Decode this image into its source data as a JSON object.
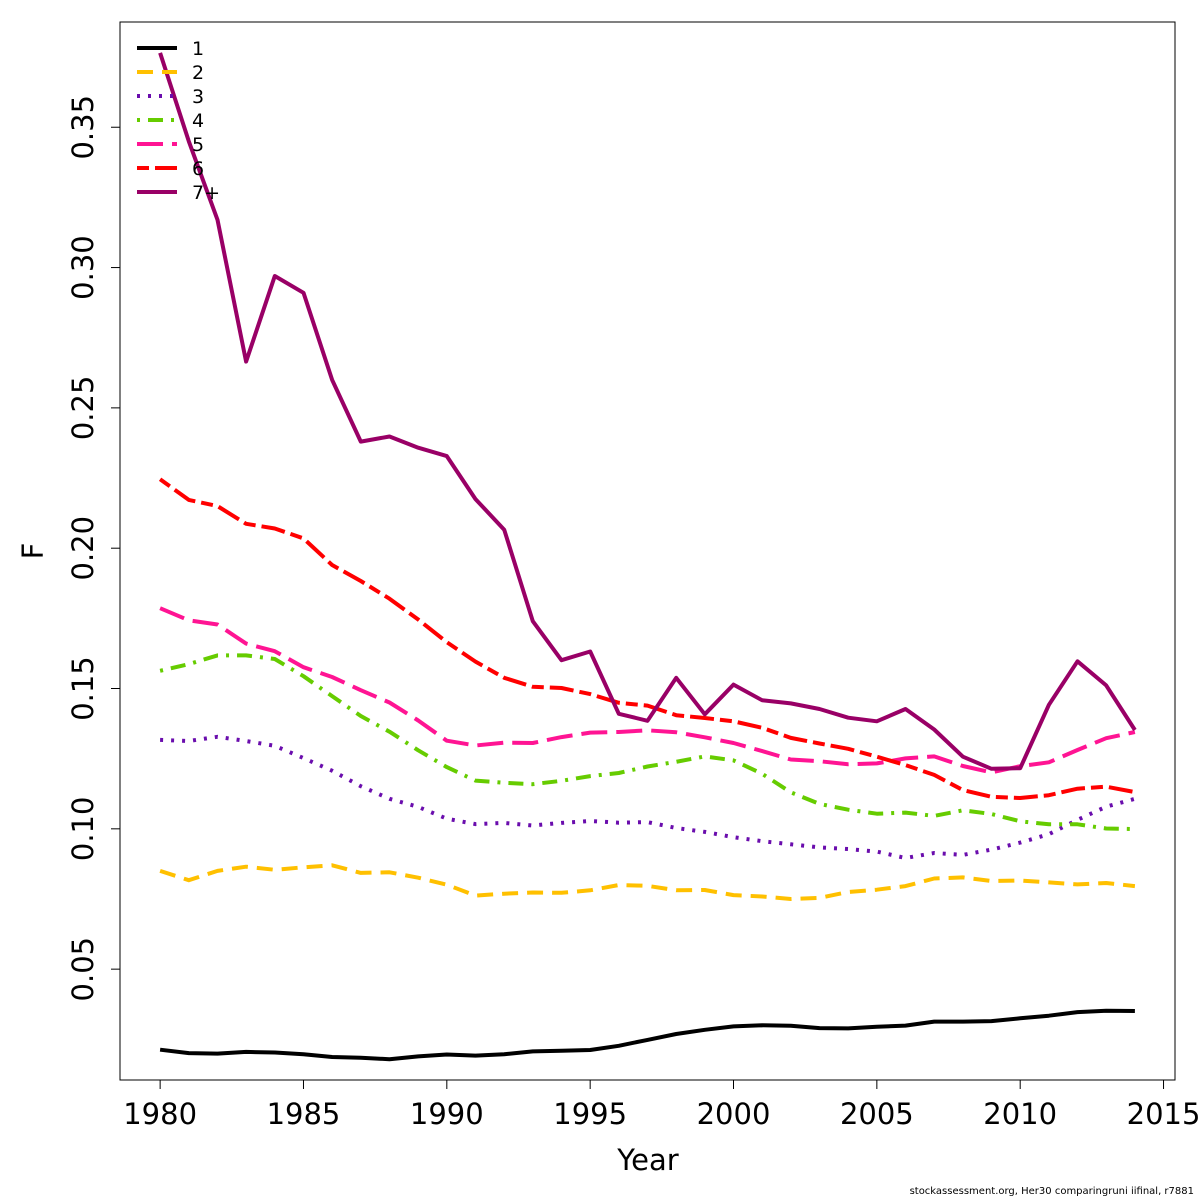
{
  "chart_data": {
    "type": "line",
    "title": "",
    "xlabel": "Year",
    "ylabel": "F",
    "xlim": [
      1978.6,
      2015.4
    ],
    "ylim": [
      0.0105,
      0.3875
    ],
    "xticks": [
      1980,
      1985,
      1990,
      1995,
      2000,
      2005,
      2010,
      2015
    ],
    "yticks": [
      0.05,
      0.1,
      0.15,
      0.2,
      0.25,
      0.3,
      0.35
    ],
    "ytick_labels": [
      "0.05",
      "0.10",
      "0.15",
      "0.20",
      "0.25",
      "0.30",
      "0.35"
    ],
    "legend_position": "top-left",
    "grid": false,
    "x": [
      1980,
      1981,
      1982,
      1983,
      1984,
      1985,
      1986,
      1987,
      1988,
      1989,
      1990,
      1991,
      1992,
      1993,
      1994,
      1995,
      1996,
      1997,
      1998,
      1999,
      2000,
      2001,
      2002,
      2003,
      2004,
      2005,
      2006,
      2007,
      2008,
      2009,
      2010,
      2011,
      2012,
      2013,
      2014
    ],
    "series": [
      {
        "name": "1",
        "color": "#000000",
        "dash": "solid",
        "values": [
          0.0213,
          0.0201,
          0.0199,
          0.0205,
          0.0203,
          0.0197,
          0.0187,
          0.0184,
          0.0179,
          0.0189,
          0.0196,
          0.0192,
          0.0197,
          0.0207,
          0.0209,
          0.0212,
          0.0227,
          0.0248,
          0.0269,
          0.0284,
          0.0296,
          0.03,
          0.0298,
          0.029,
          0.0289,
          0.0295,
          0.0299,
          0.0313,
          0.0313,
          0.0315,
          0.0325,
          0.0334,
          0.0347,
          0.0352,
          0.0351
        ]
      },
      {
        "name": "2",
        "color": "#FFC000",
        "dash": "dash",
        "values": [
          0.085,
          0.0817,
          0.085,
          0.0865,
          0.0854,
          0.0863,
          0.087,
          0.0843,
          0.0845,
          0.0826,
          0.0801,
          0.0762,
          0.0769,
          0.0773,
          0.0772,
          0.0781,
          0.08,
          0.0797,
          0.0781,
          0.0782,
          0.0764,
          0.0759,
          0.075,
          0.0754,
          0.0775,
          0.0783,
          0.0796,
          0.0823,
          0.0827,
          0.0814,
          0.0816,
          0.0809,
          0.0802,
          0.0807,
          0.0796
        ]
      },
      {
        "name": "3",
        "color": "#6A0DAD",
        "dash": "dot",
        "values": [
          0.1317,
          0.1313,
          0.1328,
          0.1313,
          0.1296,
          0.1252,
          0.1207,
          0.1152,
          0.1107,
          0.1078,
          0.1036,
          0.1017,
          0.1021,
          0.1012,
          0.1021,
          0.1028,
          0.1022,
          0.1024,
          0.1003,
          0.0989,
          0.097,
          0.0956,
          0.0945,
          0.0934,
          0.0928,
          0.0919,
          0.0896,
          0.0914,
          0.0907,
          0.0926,
          0.0951,
          0.0981,
          0.1032,
          0.1079,
          0.1107
        ]
      },
      {
        "name": "4",
        "color": "#66CC00",
        "dash": "dashdot",
        "values": [
          0.1563,
          0.1587,
          0.1618,
          0.1618,
          0.1605,
          0.1544,
          0.1473,
          0.1402,
          0.1346,
          0.128,
          0.122,
          0.1172,
          0.1164,
          0.1159,
          0.1171,
          0.1188,
          0.1199,
          0.1222,
          0.1239,
          0.1258,
          0.1244,
          0.1196,
          0.113,
          0.1089,
          0.1068,
          0.1054,
          0.1058,
          0.1046,
          0.1066,
          0.1053,
          0.1027,
          0.1016,
          0.1016,
          0.1001,
          0.0999
        ]
      },
      {
        "name": "5",
        "color": "#FF1493",
        "dash": "longdash",
        "values": [
          0.1786,
          0.1743,
          0.1728,
          0.166,
          0.1633,
          0.1576,
          0.1541,
          0.1494,
          0.145,
          0.1386,
          0.1314,
          0.1297,
          0.1307,
          0.1306,
          0.1327,
          0.1343,
          0.1345,
          0.1351,
          0.1344,
          0.1326,
          0.1306,
          0.1277,
          0.1247,
          0.1241,
          0.123,
          0.1233,
          0.1251,
          0.1258,
          0.1224,
          0.1201,
          0.1223,
          0.1237,
          0.1281,
          0.1323,
          0.1345
        ]
      },
      {
        "name": "6",
        "color": "#FF0000",
        "dash": "twodash",
        "values": [
          0.2246,
          0.2172,
          0.215,
          0.2087,
          0.207,
          0.2035,
          0.194,
          0.1883,
          0.182,
          0.1746,
          0.1665,
          0.1596,
          0.1538,
          0.1506,
          0.1502,
          0.148,
          0.1449,
          0.1439,
          0.1405,
          0.1395,
          0.1383,
          0.136,
          0.1324,
          0.1304,
          0.1285,
          0.1257,
          0.1227,
          0.1192,
          0.1138,
          0.1114,
          0.111,
          0.112,
          0.1143,
          0.115,
          0.1131
        ]
      },
      {
        "name": "7+",
        "color": "#990066",
        "dash": "solid",
        "values": [
          0.3765,
          0.345,
          0.317,
          0.2665,
          0.297,
          0.291,
          0.26,
          0.238,
          0.2398,
          0.2358,
          0.2328,
          0.2175,
          0.2066,
          0.174,
          0.1601,
          0.1632,
          0.141,
          0.1385,
          0.1538,
          0.1408,
          0.1514,
          0.1458,
          0.1447,
          0.1427,
          0.1396,
          0.1383,
          0.1427,
          0.1354,
          0.1257,
          0.1214,
          0.1216,
          0.1442,
          0.1597,
          0.1511,
          0.1352
        ]
      }
    ]
  },
  "footer": "stockassessment.org, Her30  comparingruni  iifinal, r7881"
}
